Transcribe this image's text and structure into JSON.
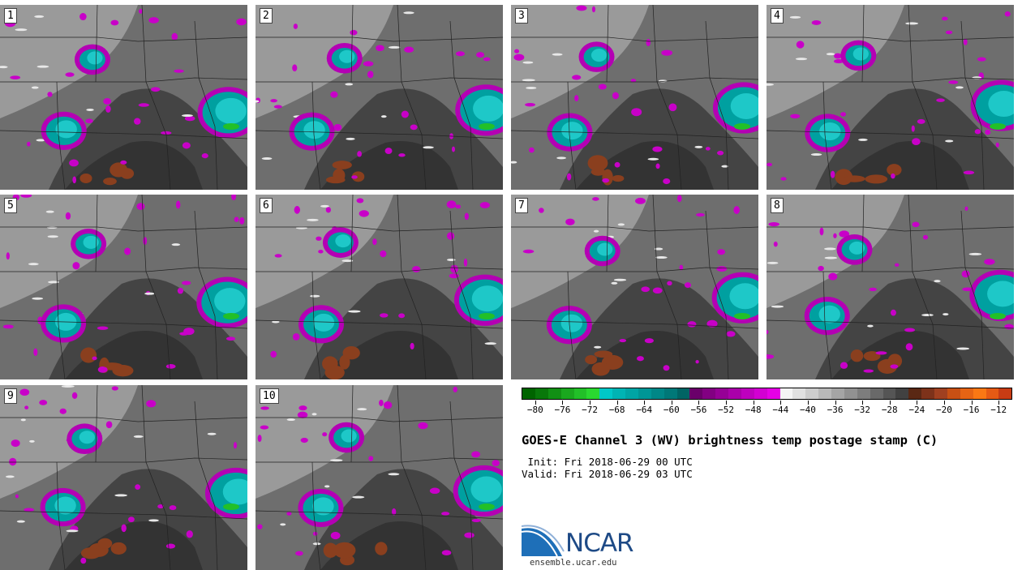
{
  "panels": [
    {
      "label": "1"
    },
    {
      "label": "2"
    },
    {
      "label": "3"
    },
    {
      "label": "4"
    },
    {
      "label": "5"
    },
    {
      "label": "6"
    },
    {
      "label": "7"
    },
    {
      "label": "8"
    },
    {
      "label": "9"
    },
    {
      "label": "10"
    }
  ],
  "colorbar": {
    "colors": [
      "#006400",
      "#08780a",
      "#119014",
      "#1aa81e",
      "#22c028",
      "#2ad830",
      "#00c8c8",
      "#00b4b4",
      "#00a5a5",
      "#009696",
      "#008787",
      "#007878",
      "#006464",
      "#6a006a",
      "#820082",
      "#960096",
      "#aa00aa",
      "#be00be",
      "#d200d2",
      "#e600e6",
      "#f5f5f5",
      "#e1e1e1",
      "#cdcdcd",
      "#b9b9b9",
      "#a5a5a5",
      "#919191",
      "#7d7d7d",
      "#696969",
      "#555555",
      "#414141",
      "#5a2814",
      "#7d321a",
      "#a04020",
      "#c85014",
      "#e66414",
      "#fa7814",
      "#e65a14",
      "#c83c14"
    ],
    "tick_labels": [
      "-80",
      "-76",
      "-72",
      "-68",
      "-64",
      "-60",
      "-56",
      "-52",
      "-48",
      "-44",
      "-40",
      "-36",
      "-32",
      "-28",
      "-24",
      "-20",
      "-16",
      "-12"
    ]
  },
  "title": "GOES-E Channel 3 (WV) brightness temp postage stamp (C)",
  "init_line": " Init: Fri 2018-06-29 00 UTC",
  "valid_line": "Valid: Fri 2018-06-29 03 UTC",
  "logo_text": "NCAR",
  "url": "ensemble.ucar.edu"
}
